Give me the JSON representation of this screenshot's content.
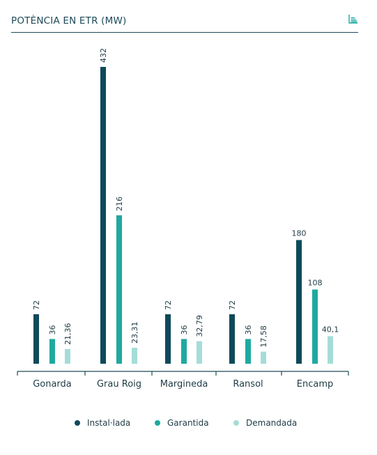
{
  "header": {
    "title": "POTÈNCIA EN ETR (MW)"
  },
  "icons": {
    "chart_toggle": "bar-chart-icon"
  },
  "colors": {
    "instal": "#0e4a5a",
    "garantida": "#1fa9a0",
    "demandada": "#a6dcd8",
    "axis": "#1d4a57",
    "text": "#1d3a44"
  },
  "chart_data": {
    "type": "bar",
    "categories": [
      "Gonarda",
      "Grau Roig",
      "Margineda",
      "Ransol",
      "Encamp"
    ],
    "series": [
      {
        "name": "Instal·lada",
        "values": [
          72,
          432,
          72,
          72,
          180
        ],
        "labels": [
          "72",
          "432",
          "72",
          "72",
          "180"
        ]
      },
      {
        "name": "Garantida",
        "values": [
          36,
          216,
          36,
          36,
          108
        ],
        "labels": [
          "36",
          "216",
          "36",
          "36",
          "108"
        ]
      },
      {
        "name": "Demandada",
        "values": [
          21.36,
          23.31,
          32.79,
          17.58,
          40.1
        ],
        "labels": [
          "21,36",
          "23,31",
          "32,79",
          "17,58",
          "40,1"
        ]
      }
    ],
    "title": "POTÈNCIA EN ETR (MW)",
    "ylim": [
      0,
      432
    ],
    "grid": false,
    "legend_position": "bottom"
  }
}
